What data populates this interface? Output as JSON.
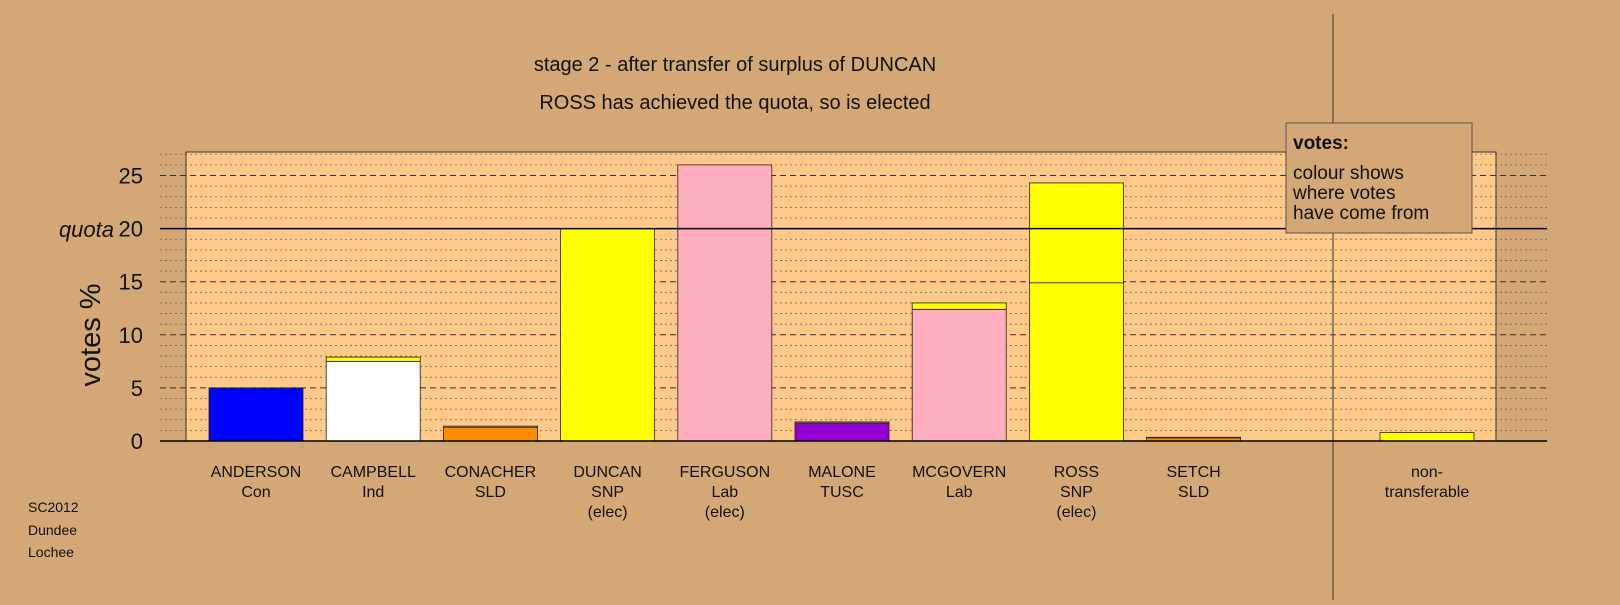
{
  "chart_data": {
    "type": "bar",
    "stacked": true,
    "title": "stage 2 - after transfer of surplus of DUNCAN",
    "subtitle": "ROSS has achieved the quota, so is elected",
    "ylabel": "votes %",
    "ylim": [
      0,
      27
    ],
    "yticks": [
      0,
      5,
      10,
      15,
      20,
      25
    ],
    "quota": {
      "value": 20,
      "label": "quota"
    },
    "grid": "dashed major every 5, dotted minor every 1",
    "legend": {
      "title": "votes:",
      "text": [
        "colour shows",
        "where votes",
        "have come from"
      ],
      "position": "top-right"
    },
    "source": [
      "SC2012",
      "Dundee",
      "Lochee"
    ],
    "series_colors": {
      "Con": "#0000ff",
      "Ind": "#ffffff",
      "SLD": "#ff8c00",
      "SNP": "#ffff00",
      "Lab": "#ffaec0",
      "TUSC": "#9400d3"
    },
    "candidates": [
      {
        "name": "ANDERSON",
        "party": "Con",
        "status": "",
        "segments": [
          {
            "from": "Con",
            "value": 5.0
          }
        ]
      },
      {
        "name": "CAMPBELL",
        "party": "Ind",
        "status": "",
        "segments": [
          {
            "from": "Ind",
            "value": 7.5
          },
          {
            "from": "SNP",
            "value": 0.4
          }
        ]
      },
      {
        "name": "CONACHER",
        "party": "SLD",
        "status": "",
        "segments": [
          {
            "from": "SLD",
            "value": 1.3
          },
          {
            "from": "SNP",
            "value": 0.1
          }
        ]
      },
      {
        "name": "DUNCAN",
        "party": "SNP",
        "status": "(elec)",
        "segments": [
          {
            "from": "SNP",
            "value": 20.0
          }
        ]
      },
      {
        "name": "FERGUSON",
        "party": "Lab",
        "status": "(elec)",
        "segments": [
          {
            "from": "Lab",
            "value": 26.0
          }
        ]
      },
      {
        "name": "MALONE",
        "party": "TUSC",
        "status": "",
        "segments": [
          {
            "from": "TUSC",
            "value": 1.7
          },
          {
            "from": "SNP",
            "value": 0.1
          }
        ]
      },
      {
        "name": "MCGOVERN",
        "party": "Lab",
        "status": "",
        "segments": [
          {
            "from": "Lab",
            "value": 12.4
          },
          {
            "from": "SNP",
            "value": 0.6
          }
        ]
      },
      {
        "name": "ROSS",
        "party": "SNP",
        "status": "(elec)",
        "segments": [
          {
            "from": "SNP",
            "value": 14.9
          },
          {
            "from": "SNP",
            "value": 9.4
          }
        ]
      },
      {
        "name": "SETCH",
        "party": "SLD",
        "status": "",
        "segments": [
          {
            "from": "SLD",
            "value": 0.3
          },
          {
            "from": "SNP",
            "value": 0.05
          }
        ]
      }
    ],
    "nontransferable": {
      "label": [
        "non-",
        "transferable"
      ],
      "segments": [
        {
          "from": "SNP",
          "value": 0.8
        }
      ]
    }
  }
}
